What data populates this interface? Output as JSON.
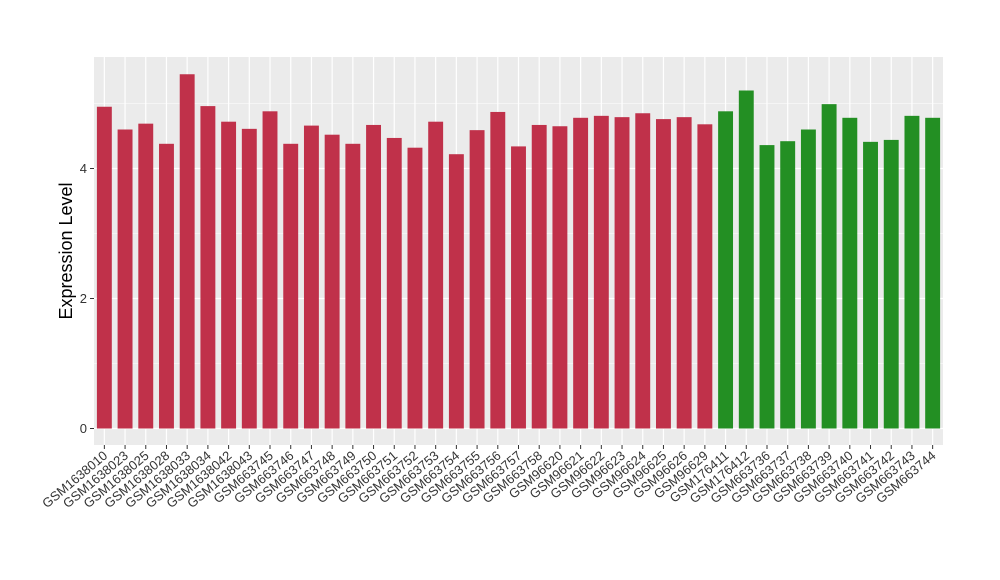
{
  "chart_data": {
    "type": "bar",
    "title": "",
    "xlabel": "",
    "ylabel": "Expression Level",
    "ylim": [
      0,
      5.8
    ],
    "y_ticks": [
      0,
      2,
      4
    ],
    "grid": true,
    "background_color": "#ebebeb",
    "grid_color": "#ffffff",
    "group_colors": {
      "red": "#c0314a",
      "green": "#238f23"
    },
    "categories": [
      "GSM1638010",
      "GSM1638023",
      "GSM1638025",
      "GSM1638028",
      "GSM1638033",
      "GSM1638034",
      "GSM1638042",
      "GSM1638043",
      "GSM663745",
      "GSM663746",
      "GSM663747",
      "GSM663748",
      "GSM663749",
      "GSM663750",
      "GSM663751",
      "GSM663752",
      "GSM663753",
      "GSM663754",
      "GSM663755",
      "GSM663756",
      "GSM663757",
      "GSM663758",
      "GSM96620",
      "GSM96621",
      "GSM96622",
      "GSM96623",
      "GSM96624",
      "GSM96625",
      "GSM96626",
      "GSM96629",
      "GSM176411",
      "GSM176412",
      "GSM663736",
      "GSM663737",
      "GSM663738",
      "GSM663739",
      "GSM663740",
      "GSM663741",
      "GSM663742",
      "GSM663743",
      "GSM663744"
    ],
    "values": [
      4.95,
      4.6,
      4.69,
      4.38,
      5.45,
      4.96,
      4.72,
      4.61,
      4.88,
      4.38,
      4.66,
      4.52,
      4.38,
      4.67,
      4.47,
      4.32,
      4.72,
      4.22,
      4.59,
      4.87,
      4.34,
      4.67,
      4.65,
      4.78,
      4.81,
      4.79,
      4.85,
      4.76,
      4.79,
      4.68,
      4.88,
      5.2,
      4.36,
      4.42,
      4.6,
      4.99,
      4.78,
      4.41,
      4.44,
      4.81,
      4.78
    ],
    "groups": [
      "red",
      "red",
      "red",
      "red",
      "red",
      "red",
      "red",
      "red",
      "red",
      "red",
      "red",
      "red",
      "red",
      "red",
      "red",
      "red",
      "red",
      "red",
      "red",
      "red",
      "red",
      "red",
      "red",
      "red",
      "red",
      "red",
      "red",
      "red",
      "red",
      "red",
      "green",
      "green",
      "green",
      "green",
      "green",
      "green",
      "green",
      "green",
      "green",
      "green",
      "green"
    ]
  }
}
